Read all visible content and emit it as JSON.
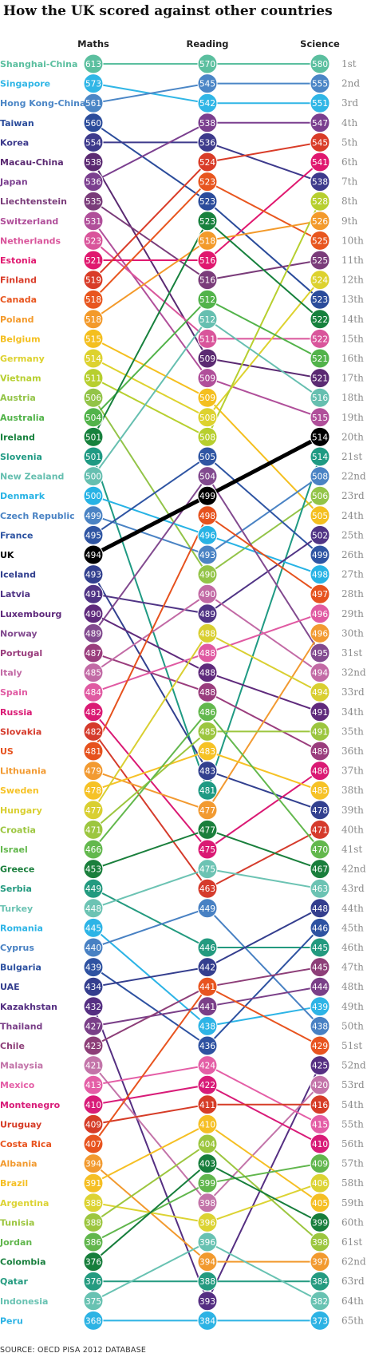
{
  "title": "How the UK scored against other countries",
  "source": "SOURCE: OECD PISA 2012 DATABASE",
  "chart_data": {
    "type": "slope",
    "columns": [
      "Maths",
      "Reading",
      "Science"
    ],
    "ranks": [
      "1st",
      "2nd",
      "3rd",
      "4th",
      "5th",
      "6th",
      "7th",
      "8th",
      "9th",
      "10th",
      "11th",
      "12th",
      "13th",
      "14th",
      "15th",
      "16th",
      "17th",
      "18th",
      "19th",
      "20th",
      "21st",
      "22nd",
      "23rd",
      "24th",
      "25th",
      "26th",
      "27th",
      "28th",
      "29th",
      "30th",
      "31st",
      "32nd",
      "33rd",
      "34th",
      "35th",
      "36th",
      "37th",
      "38th",
      "39th",
      "40th",
      "41st",
      "42nd",
      "43rd",
      "44th",
      "45th",
      "46th",
      "47th",
      "48th",
      "49th",
      "50th",
      "51st",
      "52nd",
      "53rd",
      "54th",
      "55th",
      "56th",
      "57th",
      "58th",
      "59th",
      "60th",
      "61st",
      "62nd",
      "63rd",
      "64th",
      "65th"
    ],
    "highlight": "UK",
    "countries": [
      {
        "name": "Shanghai-China",
        "color": "#5bbf9f",
        "maths": 613,
        "reading": 570,
        "science": 580,
        "rm": 1,
        "rr": 1,
        "rs": 1
      },
      {
        "name": "Singapore",
        "color": "#30b6e6",
        "maths": 573,
        "reading": 542,
        "science": 551,
        "rm": 2,
        "rr": 3,
        "rs": 3
      },
      {
        "name": "Hong Kong-China",
        "color": "#4b86c6",
        "maths": 561,
        "reading": 545,
        "science": 555,
        "rm": 3,
        "rr": 2,
        "rs": 2
      },
      {
        "name": "Taiwan",
        "color": "#2b4c9b",
        "maths": 560,
        "reading": 523,
        "science": 523,
        "rm": 4,
        "rr": 8,
        "rs": 13
      },
      {
        "name": "Korea",
        "color": "#3d3a8c",
        "maths": 554,
        "reading": 536,
        "science": 538,
        "rm": 5,
        "rr": 5,
        "rs": 7
      },
      {
        "name": "Macau-China",
        "color": "#5b2a72",
        "maths": 538,
        "reading": 509,
        "science": 521,
        "rm": 6,
        "rr": 16,
        "rs": 17
      },
      {
        "name": "Japan",
        "color": "#7b3f8f",
        "maths": 536,
        "reading": 538,
        "science": 547,
        "rm": 7,
        "rr": 4,
        "rs": 4
      },
      {
        "name": "Liechtenstein",
        "color": "#7a3c7a",
        "maths": 535,
        "reading": 516,
        "science": 525,
        "rm": 8,
        "rr": 12,
        "rs": 11
      },
      {
        "name": "Switzerland",
        "color": "#b04f9a",
        "maths": 531,
        "reading": 509,
        "science": 515,
        "rm": 9,
        "rr": 17,
        "rs": 19
      },
      {
        "name": "Netherlands",
        "color": "#d9559b",
        "maths": 523,
        "reading": 511,
        "science": 522,
        "rm": 10,
        "rr": 15,
        "rs": 15
      },
      {
        "name": "Estonia",
        "color": "#e0186f",
        "maths": 521,
        "reading": 516,
        "science": 541,
        "rm": 11,
        "rr": 11,
        "rs": 6
      },
      {
        "name": "Finland",
        "color": "#d93c28",
        "maths": 519,
        "reading": 524,
        "science": 545,
        "rm": 12,
        "rr": 6,
        "rs": 5
      },
      {
        "name": "Canada",
        "color": "#e8561f",
        "maths": 518,
        "reading": 523,
        "science": 525,
        "rm": 13,
        "rr": 7,
        "rs": 10
      },
      {
        "name": "Poland",
        "color": "#f39a2b",
        "maths": 518,
        "reading": 518,
        "science": 526,
        "rm": 14,
        "rr": 10,
        "rs": 9
      },
      {
        "name": "Belgium",
        "color": "#f4bf1f",
        "maths": 515,
        "reading": 509,
        "science": 505,
        "rm": 15,
        "rr": 18,
        "rs": 24
      },
      {
        "name": "Germany",
        "color": "#ddd22f",
        "maths": 514,
        "reading": 508,
        "science": 524,
        "rm": 16,
        "rr": 19,
        "rs": 12
      },
      {
        "name": "Vietnam",
        "color": "#b7cf2f",
        "maths": 511,
        "reading": 508,
        "science": 528,
        "rm": 17,
        "rr": 20,
        "rs": 8
      },
      {
        "name": "Austria",
        "color": "#93c448",
        "maths": 506,
        "reading": 490,
        "science": 506,
        "rm": 18,
        "rr": 27,
        "rs": 23
      },
      {
        "name": "Australia",
        "color": "#52b34a",
        "maths": 504,
        "reading": 512,
        "science": 521,
        "rm": 19,
        "rr": 13,
        "rs": 16
      },
      {
        "name": "Ireland",
        "color": "#17813d",
        "maths": 501,
        "reading": 523,
        "science": 522,
        "rm": 20,
        "rr": 9,
        "rs": 14
      },
      {
        "name": "Slovenia",
        "color": "#1f9a83",
        "maths": 501,
        "reading": 481,
        "science": 514,
        "rm": 21,
        "rr": 38,
        "rs": 21
      },
      {
        "name": "New Zealand",
        "color": "#66bfb0",
        "maths": 500,
        "reading": 512,
        "science": 516,
        "rm": 22,
        "rr": 14,
        "rs": 18
      },
      {
        "name": "Denmark",
        "color": "#27b3e5",
        "maths": 500,
        "reading": 496,
        "science": 498,
        "rm": 23,
        "rr": 25,
        "rs": 27
      },
      {
        "name": "Czech Republic",
        "color": "#4a83c4",
        "maths": 499,
        "reading": 493,
        "science": 508,
        "rm": 24,
        "rr": 26,
        "rs": 22
      },
      {
        "name": "France",
        "color": "#2f55a3",
        "maths": 495,
        "reading": 505,
        "science": 499,
        "rm": 25,
        "rr": 21,
        "rs": 26
      },
      {
        "name": "UK",
        "color": "#000000",
        "maths": 494,
        "reading": 499,
        "science": 514,
        "rm": 26,
        "rr": 23,
        "rs": 20
      },
      {
        "name": "Iceland",
        "color": "#32408f",
        "maths": 493,
        "reading": 483,
        "science": 478,
        "rm": 27,
        "rr": 37,
        "rs": 39
      },
      {
        "name": "Latvia",
        "color": "#503485",
        "maths": 491,
        "reading": 489,
        "science": 502,
        "rm": 28,
        "rr": 29,
        "rs": 25
      },
      {
        "name": "Luxembourg",
        "color": "#5f2a7c",
        "maths": 490,
        "reading": 488,
        "science": 491,
        "rm": 29,
        "rr": 32,
        "rs": 34
      },
      {
        "name": "Norway",
        "color": "#824a8f",
        "maths": 489,
        "reading": 504,
        "science": 495,
        "rm": 30,
        "rr": 22,
        "rs": 31
      },
      {
        "name": "Portugal",
        "color": "#9a3d7d",
        "maths": 487,
        "reading": 488,
        "science": 489,
        "rm": 31,
        "rr": 33,
        "rs": 36
      },
      {
        "name": "Italy",
        "color": "#c26aa5",
        "maths": 485,
        "reading": 490,
        "science": 494,
        "rm": 32,
        "rr": 28,
        "rs": 32
      },
      {
        "name": "Spain",
        "color": "#e05aa2",
        "maths": 484,
        "reading": 488,
        "science": 496,
        "rm": 33,
        "rr": 31,
        "rs": 29
      },
      {
        "name": "Russia",
        "color": "#da1a74",
        "maths": 482,
        "reading": 475,
        "science": 486,
        "rm": 34,
        "rr": 41,
        "rs": 37
      },
      {
        "name": "Slovakia",
        "color": "#d53b2c",
        "maths": 482,
        "reading": 463,
        "science": 471,
        "rm": 35,
        "rr": 43,
        "rs": 40
      },
      {
        "name": "US",
        "color": "#e6521e",
        "maths": 481,
        "reading": 498,
        "science": 497,
        "rm": 36,
        "rr": 24,
        "rs": 28
      },
      {
        "name": "Lithuania",
        "color": "#f29a31",
        "maths": 479,
        "reading": 477,
        "science": 496,
        "rm": 37,
        "rr": 39,
        "rs": 30
      },
      {
        "name": "Sweden",
        "color": "#f6c226",
        "maths": 478,
        "reading": 483,
        "science": 485,
        "rm": 38,
        "rr": 36,
        "rs": 38
      },
      {
        "name": "Hungary",
        "color": "#d9cf31",
        "maths": 477,
        "reading": 488,
        "science": 494,
        "rm": 39,
        "rr": 30,
        "rs": 33
      },
      {
        "name": "Croatia",
        "color": "#9cc63f",
        "maths": 471,
        "reading": 485,
        "science": 491,
        "rm": 40,
        "rr": 35,
        "rs": 35
      },
      {
        "name": "Israel",
        "color": "#63b84d",
        "maths": 466,
        "reading": 486,
        "science": 470,
        "rm": 41,
        "rr": 34,
        "rs": 41
      },
      {
        "name": "Greece",
        "color": "#1a7f3c",
        "maths": 453,
        "reading": 477,
        "science": 467,
        "rm": 42,
        "rr": 40,
        "rs": 42
      },
      {
        "name": "Serbia",
        "color": "#239a7f",
        "maths": 449,
        "reading": 446,
        "science": 445,
        "rm": 43,
        "rr": 46,
        "rs": 46
      },
      {
        "name": "Turkey",
        "color": "#6cc3b3",
        "maths": 448,
        "reading": 475,
        "science": 463,
        "rm": 44,
        "rr": 42,
        "rs": 43
      },
      {
        "name": "Romania",
        "color": "#2db4e6",
        "maths": 445,
        "reading": 438,
        "science": 439,
        "rm": 45,
        "rr": 50,
        "rs": 49
      },
      {
        "name": "Cyprus",
        "color": "#4881c3",
        "maths": 440,
        "reading": 449,
        "science": 438,
        "rm": 46,
        "rr": 44,
        "rs": 50
      },
      {
        "name": "Bulgaria",
        "color": "#2e52a1",
        "maths": 439,
        "reading": 436,
        "science": 446,
        "rm": 47,
        "rr": 51,
        "rs": 45
      },
      {
        "name": "UAE",
        "color": "#343e8e",
        "maths": 434,
        "reading": 442,
        "science": 448,
        "rm": 48,
        "rr": 47,
        "rs": 44
      },
      {
        "name": "Kazakhstan",
        "color": "#552f82",
        "maths": 432,
        "reading": 393,
        "science": 425,
        "rm": 49,
        "rr": 64,
        "rs": 52
      },
      {
        "name": "Thailand",
        "color": "#7a3f88",
        "maths": 427,
        "reading": 441,
        "science": 444,
        "rm": 50,
        "rr": 49,
        "rs": 48
      },
      {
        "name": "Chile",
        "color": "#8d3e78",
        "maths": 423,
        "reading": 441,
        "science": 445,
        "rm": 51,
        "rr": 48,
        "rs": 47
      },
      {
        "name": "Malaysia",
        "color": "#c374a9",
        "maths": 421,
        "reading": 398,
        "science": 420,
        "rm": 52,
        "rr": 59,
        "rs": 53
      },
      {
        "name": "Mexico",
        "color": "#e45ea6",
        "maths": 413,
        "reading": 424,
        "science": 415,
        "rm": 53,
        "rr": 52,
        "rs": 55
      },
      {
        "name": "Montenegro",
        "color": "#d81b78",
        "maths": 410,
        "reading": 422,
        "science": 410,
        "rm": 54,
        "rr": 53,
        "rs": 56
      },
      {
        "name": "Uruguay",
        "color": "#d63c27",
        "maths": 409,
        "reading": 411,
        "science": 416,
        "rm": 55,
        "rr": 54,
        "rs": 54
      },
      {
        "name": "Costa Rica",
        "color": "#e8541f",
        "maths": 407,
        "reading": 441,
        "science": 429,
        "rm": 56,
        "rr": 48,
        "rs": 51
      },
      {
        "name": "Albania",
        "color": "#f29a2f",
        "maths": 394,
        "reading": 394,
        "science": 397,
        "rm": 57,
        "rr": 62,
        "rs": 62
      },
      {
        "name": "Brazil",
        "color": "#f5bf24",
        "maths": 391,
        "reading": 410,
        "science": 405,
        "rm": 58,
        "rr": 55,
        "rs": 59
      },
      {
        "name": "Argentina",
        "color": "#dcd333",
        "maths": 388,
        "reading": 396,
        "science": 406,
        "rm": 59,
        "rr": 60,
        "rs": 58
      },
      {
        "name": "Tunisia",
        "color": "#9cc63f",
        "maths": 388,
        "reading": 404,
        "science": 398,
        "rm": 60,
        "rr": 56,
        "rs": 61
      },
      {
        "name": "Jordan",
        "color": "#61b64d",
        "maths": 386,
        "reading": 399,
        "science": 409,
        "rm": 61,
        "rr": 58,
        "rs": 57
      },
      {
        "name": "Colombia",
        "color": "#177e3c",
        "maths": 376,
        "reading": 403,
        "science": 399,
        "rm": 62,
        "rr": 57,
        "rs": 60
      },
      {
        "name": "Qatar",
        "color": "#249b80",
        "maths": 376,
        "reading": 388,
        "science": 384,
        "rm": 63,
        "rr": 63,
        "rs": 63
      },
      {
        "name": "Indonesia",
        "color": "#68c2b2",
        "maths": 375,
        "reading": 396,
        "science": 382,
        "rm": 64,
        "rr": 61,
        "rs": 64
      },
      {
        "name": "Peru",
        "color": "#2db3e4",
        "maths": 368,
        "reading": 384,
        "science": 373,
        "rm": 65,
        "rr": 65,
        "rs": 65
      }
    ]
  }
}
